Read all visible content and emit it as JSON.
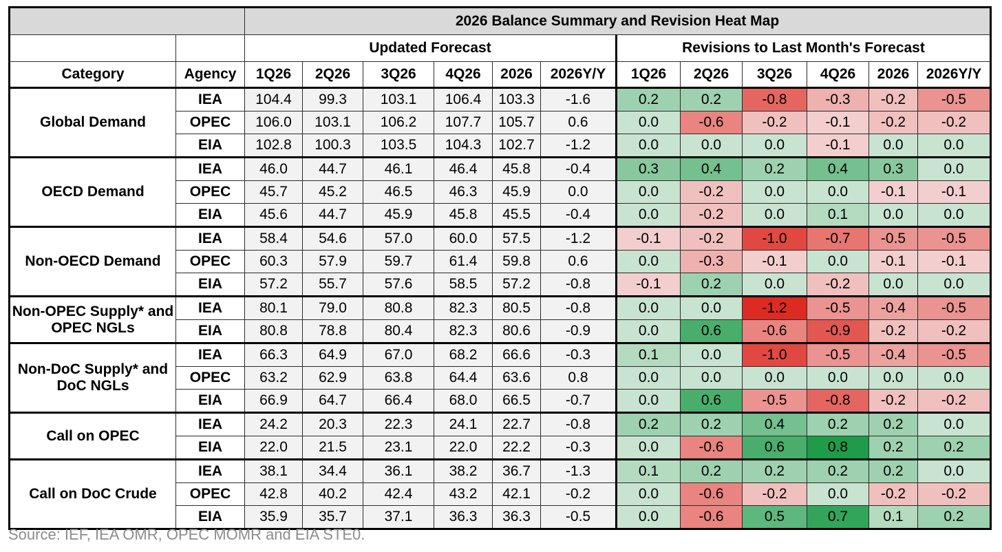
{
  "title": "2026 Balance Summary and Revision Heat Map",
  "group_updated": "Updated Forecast",
  "group_revisions": "Revisions to Last Month's Forecast",
  "columns": {
    "category": "Category",
    "agency": "Agency",
    "periods": [
      "1Q26",
      "2Q26",
      "3Q26",
      "4Q26",
      "2026",
      "2026Y/Y"
    ]
  },
  "colors": {
    "header_gray": "#d9d9d9",
    "cell_gray": "#f2f2f2",
    "green_max": "#1e9c4a",
    "red_max": "#dd2a22",
    "neutral": "#f0f0f0"
  },
  "source": "Source: IEF, IEA OMR, OPEC MOMR and EIA STE0.",
  "chart_data": {
    "type": "table",
    "title": "2026 Balance Summary and Revision Heat Map",
    "groups": [
      {
        "category": "Global Demand",
        "rows": [
          {
            "agency": "IEA",
            "forecast": [
              "104.4",
              "99.3",
              "103.1",
              "106.4",
              "103.3",
              "-1.6"
            ],
            "revisions": [
              "0.2",
              "0.2",
              "-0.8",
              "-0.3",
              "-0.2",
              "-0.5"
            ]
          },
          {
            "agency": "OPEC",
            "forecast": [
              "106.0",
              "103.1",
              "106.2",
              "107.7",
              "105.7",
              "0.6"
            ],
            "revisions": [
              "0.0",
              "-0.6",
              "-0.2",
              "-0.1",
              "-0.2",
              "-0.2"
            ]
          },
          {
            "agency": "EIA",
            "forecast": [
              "102.8",
              "100.3",
              "103.5",
              "104.3",
              "102.7",
              "-1.2"
            ],
            "revisions": [
              "0.0",
              "0.0",
              "0.0",
              "-0.1",
              "0.0",
              "0.0"
            ]
          }
        ]
      },
      {
        "category": "OECD Demand",
        "rows": [
          {
            "agency": "IEA",
            "forecast": [
              "46.0",
              "44.7",
              "46.1",
              "46.4",
              "45.8",
              "-0.4"
            ],
            "revisions": [
              "0.3",
              "0.4",
              "0.2",
              "0.4",
              "0.3",
              "0.0"
            ]
          },
          {
            "agency": "OPEC",
            "forecast": [
              "45.7",
              "45.2",
              "46.5",
              "46.3",
              "45.9",
              "0.0"
            ],
            "revisions": [
              "0.0",
              "-0.2",
              "0.0",
              "0.0",
              "-0.1",
              "-0.1"
            ]
          },
          {
            "agency": "EIA",
            "forecast": [
              "45.6",
              "44.7",
              "45.9",
              "45.8",
              "45.5",
              "-0.4"
            ],
            "revisions": [
              "0.0",
              "-0.2",
              "0.0",
              "0.1",
              "0.0",
              "0.0"
            ]
          }
        ]
      },
      {
        "category": "Non-OECD Demand",
        "rows": [
          {
            "agency": "IEA",
            "forecast": [
              "58.4",
              "54.6",
              "57.0",
              "60.0",
              "57.5",
              "-1.2"
            ],
            "revisions": [
              "-0.1",
              "-0.2",
              "-1.0",
              "-0.7",
              "-0.5",
              "-0.5"
            ]
          },
          {
            "agency": "OPEC",
            "forecast": [
              "60.3",
              "57.9",
              "59.7",
              "61.4",
              "59.8",
              "0.6"
            ],
            "revisions": [
              "0.0",
              "-0.3",
              "-0.1",
              "0.0",
              "-0.1",
              "-0.1"
            ]
          },
          {
            "agency": "EIA",
            "forecast": [
              "57.2",
              "55.7",
              "57.6",
              "58.5",
              "57.2",
              "-0.8"
            ],
            "revisions": [
              "-0.1",
              "0.2",
              "0.0",
              "-0.2",
              "0.0",
              "0.0"
            ]
          }
        ]
      },
      {
        "category": "Non-OPEC Supply* and OPEC NGLs",
        "rows": [
          {
            "agency": "IEA",
            "forecast": [
              "80.1",
              "79.0",
              "80.8",
              "82.3",
              "80.5",
              "-0.8"
            ],
            "revisions": [
              "0.0",
              "0.0",
              "-1.2",
              "-0.5",
              "-0.4",
              "-0.5"
            ]
          },
          {
            "agency": "EIA",
            "forecast": [
              "80.8",
              "78.8",
              "80.4",
              "82.3",
              "80.6",
              "-0.9"
            ],
            "revisions": [
              "0.0",
              "0.6",
              "-0.6",
              "-0.9",
              "-0.2",
              "-0.2"
            ]
          }
        ]
      },
      {
        "category": "Non-DoC Supply* and DoC NGLs",
        "rows": [
          {
            "agency": "IEA",
            "forecast": [
              "66.3",
              "64.9",
              "67.0",
              "68.2",
              "66.6",
              "-0.3"
            ],
            "revisions": [
              "0.1",
              "0.0",
              "-1.0",
              "-0.5",
              "-0.4",
              "-0.5"
            ]
          },
          {
            "agency": "OPEC",
            "forecast": [
              "63.2",
              "62.9",
              "63.8",
              "64.4",
              "63.6",
              "0.8"
            ],
            "revisions": [
              "0.0",
              "0.0",
              "0.0",
              "0.0",
              "0.0",
              "0.0"
            ]
          },
          {
            "agency": "EIA",
            "forecast": [
              "66.9",
              "64.7",
              "66.4",
              "68.0",
              "66.5",
              "-0.7"
            ],
            "revisions": [
              "0.0",
              "0.6",
              "-0.5",
              "-0.8",
              "-0.2",
              "-0.2"
            ]
          }
        ]
      },
      {
        "category": "Call on OPEC",
        "rows": [
          {
            "agency": "IEA",
            "forecast": [
              "24.2",
              "20.3",
              "22.3",
              "24.1",
              "22.7",
              "-0.8"
            ],
            "revisions": [
              "0.2",
              "0.2",
              "0.4",
              "0.2",
              "0.2",
              "0.0"
            ]
          },
          {
            "agency": "EIA",
            "forecast": [
              "22.0",
              "21.5",
              "23.1",
              "22.0",
              "22.2",
              "-0.3"
            ],
            "revisions": [
              "0.0",
              "-0.6",
              "0.6",
              "0.8",
              "0.2",
              "0.2"
            ]
          }
        ]
      },
      {
        "category": "Call on DoC Crude",
        "rows": [
          {
            "agency": "IEA",
            "forecast": [
              "38.1",
              "34.4",
              "36.1",
              "38.2",
              "36.7",
              "-1.3"
            ],
            "revisions": [
              "0.1",
              "0.2",
              "0.2",
              "0.2",
              "0.2",
              "0.0"
            ]
          },
          {
            "agency": "OPEC",
            "forecast": [
              "42.8",
              "40.2",
              "42.4",
              "43.2",
              "42.1",
              "-0.2"
            ],
            "revisions": [
              "0.0",
              "-0.6",
              "-0.2",
              "0.0",
              "-0.2",
              "-0.2"
            ]
          },
          {
            "agency": "EIA",
            "forecast": [
              "35.9",
              "35.7",
              "37.1",
              "36.3",
              "36.3",
              "-0.5"
            ],
            "revisions": [
              "0.0",
              "-0.6",
              "0.5",
              "0.7",
              "0.1",
              "0.2"
            ]
          }
        ]
      }
    ]
  }
}
